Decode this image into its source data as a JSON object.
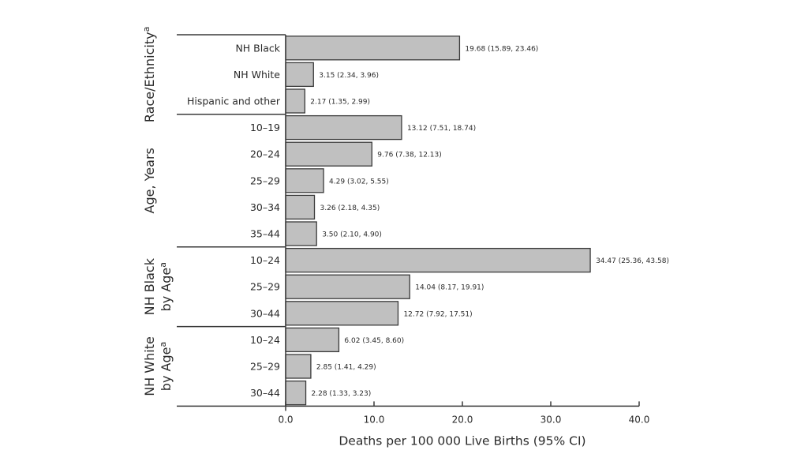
{
  "chart_data": {
    "type": "bar",
    "orientation": "horizontal",
    "xlabel": "Deaths per 100 000 Live Births (95% CI)",
    "xlim": [
      0,
      40
    ],
    "xticks": [
      "0.0",
      "10.0",
      "20.0",
      "30.0",
      "40.0"
    ],
    "xtick_values": [
      0,
      10,
      20,
      30,
      40
    ],
    "bar_color": "#c0c0c0",
    "edge_color": "#3a3a3a",
    "groups": [
      {
        "label": "Race/Ethnicity",
        "label_sup": "a",
        "label_lines": [
          "Race/Ethnicity"
        ],
        "bars": [
          {
            "category": "NH Black",
            "value": 19.68,
            "ci": [
              15.89,
              23.46
            ],
            "text": "19.68 (15.89, 23.46)"
          },
          {
            "category": "NH White",
            "value": 3.15,
            "ci": [
              2.34,
              3.96
            ],
            "text": "3.15 (2.34, 3.96)"
          },
          {
            "category": "Hispanic and other",
            "value": 2.17,
            "ci": [
              1.35,
              2.99
            ],
            "text": "2.17 (1.35, 2.99)"
          }
        ]
      },
      {
        "label": "Age, Years",
        "label_sup": "",
        "label_lines": [
          "Age, Years"
        ],
        "bars": [
          {
            "category": "10–19",
            "value": 13.12,
            "ci": [
              7.51,
              18.74
            ],
            "text": "13.12 (7.51, 18.74)"
          },
          {
            "category": "20–24",
            "value": 9.76,
            "ci": [
              7.38,
              12.13
            ],
            "text": "9.76 (7.38, 12.13)"
          },
          {
            "category": "25–29",
            "value": 4.29,
            "ci": [
              3.02,
              5.55
            ],
            "text": "4.29 (3.02, 5.55)"
          },
          {
            "category": "30–34",
            "value": 3.26,
            "ci": [
              2.18,
              4.35
            ],
            "text": "3.26 (2.18, 4.35)"
          },
          {
            "category": "35–44",
            "value": 3.5,
            "ci": [
              2.1,
              4.9
            ],
            "text": "3.50 (2.10, 4.90)"
          }
        ]
      },
      {
        "label": "NH Black by Age",
        "label_sup": "a",
        "label_lines": [
          "NH Black",
          "by Age"
        ],
        "bars": [
          {
            "category": "10–24",
            "value": 34.47,
            "ci": [
              25.36,
              43.58
            ],
            "text": "34.47 (25.36, 43.58)"
          },
          {
            "category": "25–29",
            "value": 14.04,
            "ci": [
              8.17,
              19.91
            ],
            "text": "14.04 (8.17, 19.91)"
          },
          {
            "category": "30–44",
            "value": 12.72,
            "ci": [
              7.92,
              17.51
            ],
            "text": "12.72 (7.92, 17.51)"
          }
        ]
      },
      {
        "label": "NH White by Age",
        "label_sup": "a",
        "label_lines": [
          "NH White",
          "by Age"
        ],
        "bars": [
          {
            "category": "10–24",
            "value": 6.02,
            "ci": [
              3.45,
              8.6
            ],
            "text": "6.02 (3.45, 8.60)"
          },
          {
            "category": "25–29",
            "value": 2.85,
            "ci": [
              1.41,
              4.29
            ],
            "text": "2.85 (1.41, 4.29)"
          },
          {
            "category": "30–44",
            "value": 2.28,
            "ci": [
              1.33,
              3.23
            ],
            "text": "2.28 (1.33, 3.23)"
          }
        ]
      }
    ]
  }
}
